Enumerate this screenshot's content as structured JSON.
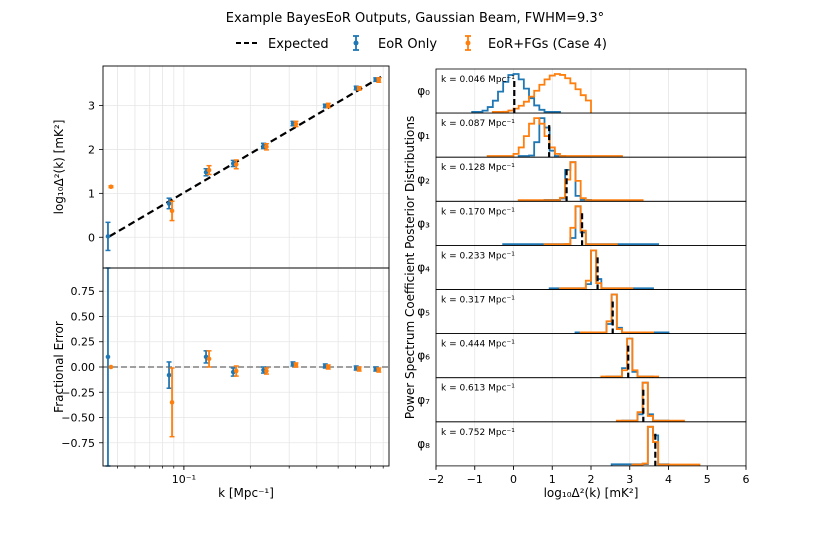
{
  "figure": {
    "title": "Example BayesEoR Outputs, Gaussian Beam, FWHM=9.3°"
  },
  "legend": {
    "position": "top-center",
    "entries": [
      {
        "label": "Expected",
        "style": "dashed",
        "color": "#000000"
      },
      {
        "label": "EoR Only",
        "style": "errorbar",
        "color": "#1f77b4"
      },
      {
        "label": "EoR+FGs (Case 4)",
        "style": "errorbar",
        "color": "#ff7f0e"
      }
    ]
  },
  "chart_data": [
    {
      "type": "scatter",
      "panel": "top-left",
      "title": "",
      "xlabel": "",
      "ylabel": "log₁₀Δ²(k) [mK²]",
      "xscale": "log",
      "xlim": [
        0.043,
        0.85
      ],
      "ylim": [
        -0.7,
        3.9
      ],
      "yticks": [
        0,
        1,
        2,
        3
      ],
      "grid": true,
      "expected_line": {
        "x": [
          0.046,
          0.8
        ],
        "y": [
          0.02,
          3.68
        ]
      },
      "series": [
        {
          "name": "EoR Only",
          "x": [
            0.046,
            0.087,
            0.128,
            0.17,
            0.233,
            0.317,
            0.444,
            0.613,
            0.752
          ],
          "y": [
            0.02,
            0.77,
            1.48,
            1.68,
            2.08,
            2.59,
            2.99,
            3.4,
            3.59
          ],
          "err": [
            0.32,
            0.12,
            0.08,
            0.07,
            0.06,
            0.05,
            0.04,
            0.04,
            0.04
          ]
        },
        {
          "name": "EoR+FGs (Case 4)",
          "x": [
            0.046,
            0.087,
            0.128,
            0.17,
            0.233,
            0.317,
            0.444,
            0.613,
            0.752
          ],
          "y": [
            1.15,
            0.6,
            1.53,
            1.66,
            2.06,
            2.58,
            3.0,
            3.39,
            3.58
          ],
          "err": [
            0.02,
            0.22,
            0.1,
            0.1,
            0.07,
            0.06,
            0.05,
            0.04,
            0.05
          ]
        }
      ]
    },
    {
      "type": "scatter",
      "panel": "bottom-left",
      "title": "",
      "xlabel": "k [Mpc⁻¹]",
      "ylabel": "Fractional Error",
      "xscale": "log",
      "xlim": [
        0.043,
        0.85
      ],
      "ylim": [
        -0.98,
        0.98
      ],
      "yticks": [
        -0.75,
        -0.5,
        -0.25,
        0.0,
        0.25,
        0.5,
        0.75
      ],
      "ytick_labels": [
        "−0.75",
        "−0.50",
        "−0.25",
        "0.00",
        "0.25",
        "0.50",
        "0.75"
      ],
      "xtick_labels": [
        "10⁻¹"
      ],
      "grid": true,
      "reference_line": 0.0,
      "series": [
        {
          "name": "EoR Only",
          "x": [
            0.046,
            0.087,
            0.128,
            0.17,
            0.233,
            0.317,
            0.444,
            0.613,
            0.752
          ],
          "y": [
            0.1,
            -0.08,
            0.1,
            -0.05,
            -0.03,
            0.03,
            0.01,
            -0.01,
            -0.02
          ],
          "err": [
            1.5,
            0.13,
            0.06,
            0.04,
            0.03,
            0.02,
            0.02,
            0.02,
            0.02
          ]
        },
        {
          "name": "EoR+FGs (Case 4)",
          "x": [
            0.046,
            0.087,
            0.128,
            0.17,
            0.233,
            0.317,
            0.444,
            0.613,
            0.752
          ],
          "y": [
            0.0,
            -0.35,
            0.08,
            -0.04,
            -0.04,
            0.02,
            0.0,
            -0.02,
            -0.03
          ],
          "err": [
            0.0,
            0.34,
            0.08,
            0.05,
            0.03,
            0.02,
            0.02,
            0.02,
            0.02
          ]
        }
      ]
    },
    {
      "type": "histogram",
      "panel": "right",
      "title": "",
      "xlabel": "log₁₀Δ²(k) [mK²]",
      "ylabel": "Power Spectrum Coefficient Posterior Distributions",
      "xlim": [
        -2,
        6
      ],
      "xticks": [
        -2,
        -1,
        0,
        1,
        2,
        3,
        4,
        5,
        6
      ],
      "xtick_labels": [
        "−2",
        "−1",
        "0",
        "1",
        "2",
        "3",
        "4",
        "5",
        "6"
      ],
      "grid": true,
      "rows": [
        {
          "label": "φ₀",
          "k_label": "k = 0.046 Mpc⁻¹",
          "expected": 0.02,
          "eor_only": {
            "mean": 0.02,
            "sigma": 0.32,
            "xmin": -1.0,
            "xmax": 1.2
          },
          "eor_fgs": {
            "mean": 1.15,
            "sigma": 0.52,
            "xmin": -0.5,
            "xmax": 2.0
          }
        },
        {
          "label": "φ₁",
          "k_label": "k = 0.087 Mpc⁻¹",
          "expected": 0.92,
          "eor_only": {
            "mean": 0.77,
            "sigma": 0.12,
            "xmin": 0.2,
            "xmax": 1.3
          },
          "eor_fgs": {
            "mean": 0.6,
            "sigma": 0.24,
            "xmin": -0.6,
            "xmax": 2.8
          }
        },
        {
          "label": "φ₂",
          "k_label": "k = 0.128 Mpc⁻¹",
          "expected": 1.37,
          "eor_only": {
            "mean": 1.48,
            "sigma": 0.09,
            "xmin": 0.9,
            "xmax": 2.0
          },
          "eor_fgs": {
            "mean": 1.53,
            "sigma": 0.12,
            "xmin": 0.2,
            "xmax": 3.3
          }
        },
        {
          "label": "φ₃",
          "k_label": "k = 0.170 Mpc⁻¹",
          "expected": 1.77,
          "eor_only": {
            "mean": 1.68,
            "sigma": 0.08,
            "xmin": -0.2,
            "xmax": 3.6
          },
          "eor_fgs": {
            "mean": 1.66,
            "sigma": 0.1,
            "xmin": 0.8,
            "xmax": 2.6
          }
        },
        {
          "label": "φ₄",
          "k_label": "k = 0.233 Mpc⁻¹",
          "expected": 2.17,
          "eor_only": {
            "mean": 2.08,
            "sigma": 0.06,
            "xmin": 1.0,
            "xmax": 3.5
          },
          "eor_fgs": {
            "mean": 2.06,
            "sigma": 0.07,
            "xmin": 1.2,
            "xmax": 3.0
          }
        },
        {
          "label": "φ₅",
          "k_label": "k = 0.317 Mpc⁻¹",
          "expected": 2.56,
          "eor_only": {
            "mean": 2.59,
            "sigma": 0.06,
            "xmin": 1.6,
            "xmax": 4.0
          },
          "eor_fgs": {
            "mean": 2.58,
            "sigma": 0.07,
            "xmin": 1.8,
            "xmax": 3.5
          }
        },
        {
          "label": "φ₆",
          "k_label": "k = 0.444 Mpc⁻¹",
          "expected": 2.96,
          "eor_only": {
            "mean": 2.99,
            "sigma": 0.05,
            "xmin": 2.4,
            "xmax": 3.5
          },
          "eor_fgs": {
            "mean": 3.0,
            "sigma": 0.05,
            "xmin": 2.3,
            "xmax": 3.7
          }
        },
        {
          "label": "φ₇",
          "k_label": "k = 0.613 Mpc⁻¹",
          "expected": 3.35,
          "eor_only": {
            "mean": 3.4,
            "sigma": 0.05,
            "xmin": 2.9,
            "xmax": 3.9
          },
          "eor_fgs": {
            "mean": 3.39,
            "sigma": 0.05,
            "xmin": 2.7,
            "xmax": 4.3
          }
        },
        {
          "label": "φ₈",
          "k_label": "k = 0.752 Mpc⁻¹",
          "expected": 3.66,
          "eor_only": {
            "mean": 3.59,
            "sigma": 0.05,
            "xmin": 2.6,
            "xmax": 4.0
          },
          "eor_fgs": {
            "mean": 3.58,
            "sigma": 0.06,
            "xmin": 3.1,
            "xmax": 4.8
          }
        }
      ]
    }
  ],
  "colors": {
    "eor_only": "#1f77b4",
    "eor_fgs": "#ff7f0e",
    "expected": "#000000",
    "grid": "#e6e6e6",
    "reference": "#808080"
  }
}
